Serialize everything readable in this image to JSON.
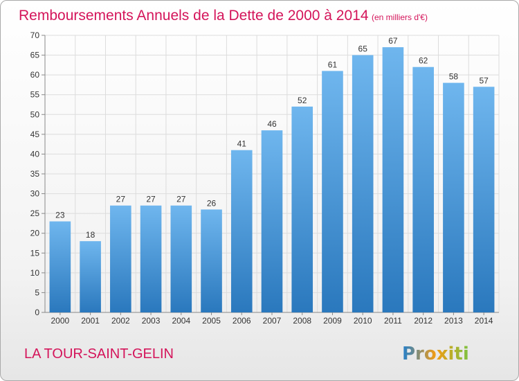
{
  "chart_data": {
    "type": "bar",
    "title": "Remboursements Annuels de la Dette de 2000 à 2014",
    "subtitle": "(en milliers d'€)",
    "categories": [
      "2000",
      "2001",
      "2002",
      "2003",
      "2004",
      "2005",
      "2006",
      "2007",
      "2008",
      "2009",
      "2010",
      "2011",
      "2012",
      "2013",
      "2014"
    ],
    "values": [
      23,
      18,
      27,
      27,
      27,
      26,
      41,
      46,
      52,
      61,
      65,
      67,
      62,
      58,
      57
    ],
    "ylim": [
      0,
      70
    ],
    "yticks": [
      0,
      5,
      10,
      15,
      20,
      25,
      30,
      35,
      40,
      45,
      50,
      55,
      60,
      65,
      70
    ],
    "xlabel": "",
    "ylabel": "",
    "grid": true,
    "data_labels": true
  },
  "footer": {
    "place_name": "LA TOUR-SAINT-GELIN",
    "logo_text": "Proxiti"
  },
  "colors": {
    "title": "#d4145a",
    "bar_light": "#6fb6ee",
    "bar_dark": "#2a78bd",
    "grid": "#dcdcdc",
    "axis_text": "#333333"
  }
}
